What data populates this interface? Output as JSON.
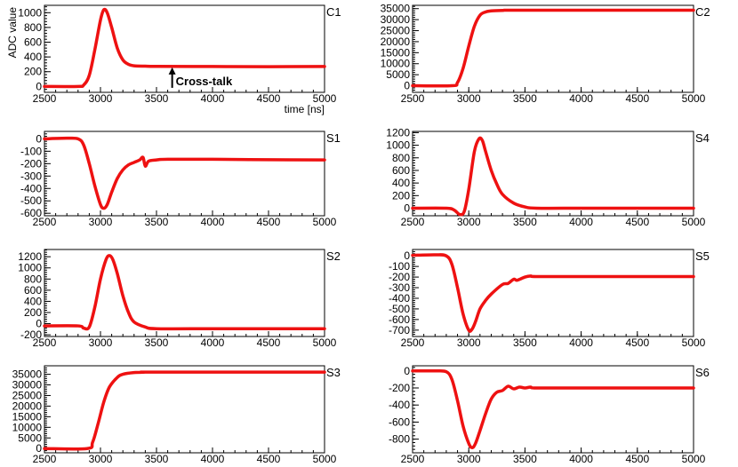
{
  "figure": {
    "line_color": "#ee1111",
    "axis_color": "#000000",
    "background": "#ffffff"
  },
  "chart_data": [
    {
      "type": "line",
      "id": "C1",
      "panel_label": "C1",
      "xlabel": "time [ns]",
      "ylabel": "ADC value",
      "xlim": [
        2500,
        5000
      ],
      "ylim": [
        -80,
        1100
      ],
      "xticks": [
        2500,
        3000,
        3500,
        4000,
        4500,
        5000
      ],
      "yticks": [
        0,
        200,
        400,
        600,
        800,
        1000
      ],
      "annotation": {
        "text": "Cross-talk",
        "x": 3640,
        "y": 270
      },
      "series": [
        {
          "x": [
            2500,
            2800,
            2850,
            2900,
            2950,
            3000,
            3030,
            3060,
            3100,
            3150,
            3200,
            3250,
            3300,
            3400,
            3500,
            4000,
            4500,
            5000
          ],
          "y": [
            0,
            0,
            20,
            150,
            500,
            900,
            1040,
            1000,
            800,
            520,
            360,
            300,
            280,
            275,
            272,
            270,
            268,
            270
          ]
        }
      ]
    },
    {
      "type": "line",
      "id": "C2",
      "panel_label": "C2",
      "xlabel": "",
      "ylabel": "",
      "xlim": [
        2500,
        5000
      ],
      "ylim": [
        -3000,
        36500
      ],
      "xticks": [
        2500,
        3000,
        3500,
        4000,
        4500,
        5000
      ],
      "yticks": [
        0,
        5000,
        10000,
        15000,
        20000,
        25000,
        30000,
        35000
      ],
      "series": [
        {
          "x": [
            2500,
            2850,
            2900,
            2950,
            3000,
            3050,
            3100,
            3150,
            3200,
            3300,
            3500,
            5000
          ],
          "y": [
            0,
            0,
            1500,
            8000,
            18000,
            27000,
            32000,
            33500,
            34000,
            34200,
            34300,
            34300
          ]
        }
      ]
    },
    {
      "type": "line",
      "id": "S1",
      "panel_label": "S1",
      "xlabel": "",
      "ylabel": "",
      "xlim": [
        2500,
        5000
      ],
      "ylim": [
        -620,
        60
      ],
      "xticks": [
        2500,
        3000,
        3500,
        4000,
        4500,
        5000
      ],
      "yticks": [
        0,
        -100,
        -200,
        -300,
        -400,
        -500,
        -600
      ],
      "series": [
        {
          "x": [
            2500,
            2700,
            2800,
            2850,
            2900,
            2950,
            3000,
            3030,
            3060,
            3100,
            3150,
            3200,
            3250,
            3300,
            3350,
            3380,
            3400,
            3430,
            3500,
            3600,
            4000,
            4500,
            5000
          ],
          "y": [
            0,
            5,
            0,
            -50,
            -200,
            -380,
            -530,
            -560,
            -530,
            -430,
            -320,
            -250,
            -210,
            -190,
            -170,
            -150,
            -220,
            -180,
            -170,
            -165,
            -165,
            -168,
            -170
          ]
        }
      ]
    },
    {
      "type": "line",
      "id": "S4",
      "panel_label": "S4",
      "xlabel": "",
      "ylabel": "",
      "xlim": [
        2500,
        5000
      ],
      "ylim": [
        -120,
        1220
      ],
      "xticks": [
        2500,
        3000,
        3500,
        4000,
        4500,
        5000
      ],
      "yticks": [
        0,
        200,
        400,
        600,
        800,
        1000,
        1200
      ],
      "series": [
        {
          "x": [
            2500,
            2800,
            2870,
            2920,
            2960,
            3000,
            3050,
            3090,
            3120,
            3150,
            3200,
            3250,
            3300,
            3400,
            3500,
            3600,
            4000,
            4500,
            5000
          ],
          "y": [
            0,
            0,
            -30,
            -100,
            -50,
            300,
            900,
            1100,
            1080,
            900,
            600,
            380,
            220,
            80,
            20,
            0,
            0,
            0,
            0
          ]
        }
      ]
    },
    {
      "type": "line",
      "id": "S2",
      "panel_label": "S2",
      "xlabel": "",
      "ylabel": "",
      "xlim": [
        2500,
        5000
      ],
      "ylim": [
        -230,
        1330
      ],
      "xticks": [
        2500,
        3000,
        3500,
        4000,
        4500,
        5000
      ],
      "yticks": [
        -200,
        0,
        200,
        400,
        600,
        800,
        1000,
        1200
      ],
      "series": [
        {
          "x": [
            2500,
            2800,
            2850,
            2900,
            2950,
            3000,
            3050,
            3080,
            3110,
            3150,
            3200,
            3250,
            3300,
            3400,
            3500,
            4000,
            4500,
            5000
          ],
          "y": [
            -40,
            -40,
            -80,
            -60,
            300,
            800,
            1150,
            1220,
            1150,
            900,
            500,
            200,
            30,
            -60,
            -90,
            -90,
            -90,
            -90
          ]
        }
      ]
    },
    {
      "type": "line",
      "id": "S5",
      "panel_label": "S5",
      "xlabel": "",
      "ylabel": "",
      "xlim": [
        2500,
        5000
      ],
      "ylim": [
        -760,
        60
      ],
      "xticks": [
        2500,
        3000,
        3500,
        4000,
        4500,
        5000
      ],
      "yticks": [
        0,
        -100,
        -200,
        -300,
        -400,
        -500,
        -600,
        -700
      ],
      "series": [
        {
          "x": [
            2500,
            2700,
            2800,
            2850,
            2900,
            2950,
            3000,
            3030,
            3060,
            3100,
            3150,
            3200,
            3300,
            3350,
            3400,
            3430,
            3500,
            3550,
            3600,
            4000,
            4500,
            5000
          ],
          "y": [
            5,
            10,
            0,
            -80,
            -300,
            -550,
            -700,
            -690,
            -620,
            -500,
            -420,
            -360,
            -270,
            -260,
            -220,
            -230,
            -200,
            -190,
            -195,
            -195,
            -195,
            -195
          ]
        }
      ]
    },
    {
      "type": "line",
      "id": "S3",
      "panel_label": "S3",
      "xlabel": "",
      "ylabel": "",
      "xlim": [
        2500,
        5000
      ],
      "ylim": [
        -2000,
        39000
      ],
      "xticks": [
        2500,
        3000,
        3500,
        4000,
        4500,
        5000
      ],
      "yticks": [
        0,
        5000,
        10000,
        15000,
        20000,
        25000,
        30000,
        35000
      ],
      "series": [
        {
          "x": [
            2500,
            2880,
            2930,
            2980,
            3030,
            3080,
            3150,
            3200,
            3300,
            3400,
            3500,
            5000
          ],
          "y": [
            0,
            0,
            3000,
            12000,
            22000,
            29000,
            33500,
            35000,
            35800,
            36000,
            36000,
            36000
          ]
        }
      ]
    },
    {
      "type": "line",
      "id": "S6",
      "panel_label": "S6",
      "xlabel": "",
      "ylabel": "",
      "xlim": [
        2500,
        5000
      ],
      "ylim": [
        -960,
        60
      ],
      "xticks": [
        2500,
        3000,
        3500,
        4000,
        4500,
        5000
      ],
      "yticks": [
        0,
        -200,
        -400,
        -600,
        -800
      ],
      "series": [
        {
          "x": [
            2500,
            2700,
            2800,
            2850,
            2900,
            2950,
            3000,
            3030,
            3060,
            3100,
            3150,
            3200,
            3250,
            3300,
            3350,
            3400,
            3450,
            3500,
            3550,
            3600,
            4000,
            4500,
            5000
          ],
          "y": [
            0,
            0,
            -10,
            -100,
            -350,
            -650,
            -850,
            -900,
            -850,
            -700,
            -500,
            -330,
            -250,
            -230,
            -180,
            -210,
            -190,
            -200,
            -190,
            -200,
            -200,
            -200,
            -200
          ]
        }
      ]
    }
  ]
}
